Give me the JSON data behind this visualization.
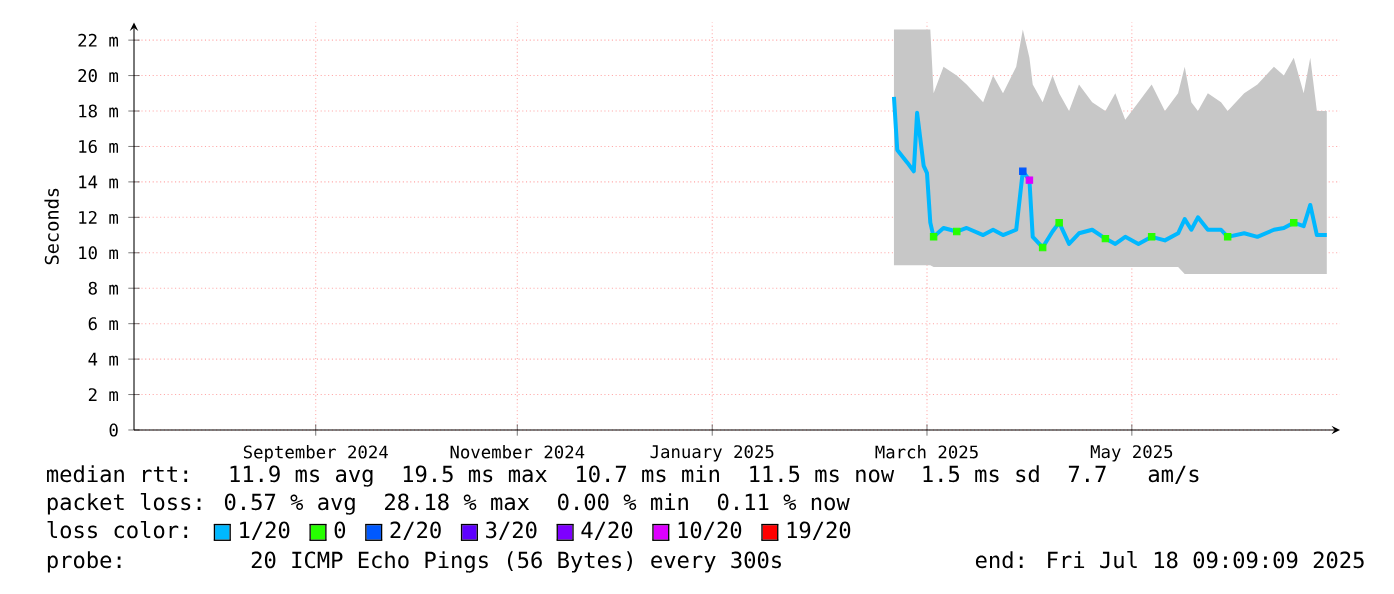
{
  "chart_data": {
    "type": "line",
    "ylabel": "Seconds",
    "legend_title": "loss color:",
    "legend": "bottom",
    "grid": true,
    "xlim": [
      "2024-07-18",
      "2025-07-18"
    ],
    "xticks": [
      {
        "value": "2024-09-11",
        "label": "September 2024"
      },
      {
        "value": "2024-11-11",
        "label": "November 2024"
      },
      {
        "value": "2025-01-09",
        "label": "January 2025"
      },
      {
        "value": "2025-03-15",
        "label": "March 2025"
      },
      {
        "value": "2025-05-16",
        "label": "May 2025"
      }
    ],
    "ylim": [
      0,
      23
    ],
    "yticks": [
      0,
      {
        "value": 2,
        "label": "2 m"
      },
      {
        "value": 4,
        "label": "4 m"
      },
      {
        "value": 6,
        "label": "6 m"
      },
      {
        "value": 8,
        "label": "8 m"
      },
      {
        "value": 10,
        "label": "10 m"
      },
      {
        "value": 12,
        "label": "12 m"
      },
      {
        "value": 14,
        "label": "14 m"
      },
      {
        "value": 16,
        "label": "16 m"
      },
      {
        "value": 18,
        "label": "18 m"
      },
      {
        "value": 20,
        "label": "20 m"
      },
      {
        "value": 22,
        "label": "22 m"
      }
    ],
    "series": [
      {
        "name": "1/20",
        "type": "line",
        "color": "#00b8ff",
        "x": [
          "2025-03-05",
          "2025-03-06",
          "2025-03-09",
          "2025-03-11",
          "2025-03-12",
          "2025-03-14",
          "2025-03-15",
          "2025-03-16",
          "2025-03-17",
          "2025-03-20",
          "2025-03-24",
          "2025-03-27",
          "2025-04-01",
          "2025-04-04",
          "2025-04-07",
          "2025-04-11",
          "2025-04-13",
          "2025-04-15",
          "2025-04-16",
          "2025-04-19",
          "2025-04-22",
          "2025-04-24",
          "2025-04-27",
          "2025-04-30",
          "2025-05-04",
          "2025-05-08",
          "2025-05-11",
          "2025-05-14",
          "2025-05-18",
          "2025-05-22",
          "2025-05-26",
          "2025-05-30",
          "2025-06-01",
          "2025-06-03",
          "2025-06-05",
          "2025-06-08",
          "2025-06-12",
          "2025-06-14",
          "2025-06-19",
          "2025-06-23",
          "2025-06-28",
          "2025-07-01",
          "2025-07-04",
          "2025-07-07",
          "2025-07-09",
          "2025-07-11",
          "2025-07-14"
        ],
        "values": [
          18.8,
          15.8,
          15.1,
          14.6,
          17.9,
          14.9,
          14.5,
          11.7,
          10.9,
          11.4,
          11.2,
          11.4,
          11.0,
          11.3,
          11.0,
          11.3,
          14.6,
          14.1,
          10.9,
          10.3,
          11.2,
          11.7,
          10.5,
          11.1,
          11.3,
          10.8,
          10.5,
          10.9,
          10.5,
          10.9,
          10.7,
          11.1,
          11.9,
          11.3,
          12.0,
          11.3,
          11.3,
          10.9,
          11.1,
          10.9,
          11.3,
          11.4,
          11.7,
          11.5,
          12.7,
          11.0,
          11.0
        ],
        "lower": [
          9.3,
          9.3,
          9.3,
          9.3,
          9.3,
          9.3,
          9.3,
          9.3,
          9.2,
          9.2,
          9.2,
          9.2,
          9.2,
          9.2,
          9.2,
          9.2,
          9.2,
          9.2,
          9.2,
          9.2,
          9.2,
          9.2,
          9.2,
          9.2,
          9.2,
          9.2,
          9.2,
          9.2,
          9.2,
          9.2,
          9.2,
          9.2,
          8.8,
          8.8,
          8.8,
          8.8,
          8.8,
          8.8,
          8.8,
          8.8,
          8.8,
          8.8,
          8.8,
          8.8,
          8.8,
          8.8,
          8.8
        ],
        "upper": [
          22.6,
          22.6,
          22.6,
          22.6,
          22.6,
          22.6,
          22.6,
          22.6,
          19.0,
          20.5,
          20.0,
          19.5,
          18.5,
          20.0,
          19.0,
          20.5,
          22.6,
          21.0,
          19.5,
          18.5,
          20.0,
          19.0,
          18.0,
          19.5,
          18.5,
          18.0,
          19.0,
          17.5,
          18.5,
          19.5,
          18.0,
          19.0,
          20.5,
          18.5,
          18.0,
          19.0,
          18.5,
          18.0,
          19.0,
          19.5,
          20.5,
          20.0,
          21.0,
          19.0,
          21.0,
          18.0,
          18.0
        ]
      },
      {
        "name": "0",
        "type": "scatter",
        "marker": "square",
        "color": "#26ff00",
        "x": [
          "2025-03-17",
          "2025-03-24",
          "2025-04-19",
          "2025-04-24",
          "2025-05-08",
          "2025-05-22",
          "2025-06-14",
          "2025-07-04"
        ],
        "values": [
          10.9,
          11.2,
          10.3,
          11.7,
          10.8,
          10.9,
          10.9,
          11.7
        ]
      },
      {
        "name": "2/20",
        "type": "scatter",
        "marker": "square",
        "color": "#0059ff",
        "x": [
          "2025-04-13"
        ],
        "values": [
          14.6
        ]
      },
      {
        "name": "3/20",
        "color": "#5e00ff"
      },
      {
        "name": "4/20",
        "color": "#7e00ff"
      },
      {
        "name": "10/20",
        "type": "scatter",
        "marker": "square",
        "color": "#dd00ff",
        "x": [
          "2025-04-15"
        ],
        "values": [
          14.1
        ]
      },
      {
        "name": "19/20",
        "color": "#ff0000"
      }
    ],
    "annotations": [
      "median rtt:  11.9 ms avg  19.5 ms max  10.7 ms min  11.5 ms now  1.5 ms sd  7.7   am/s",
      "packet loss: 0.57 % avg  28.18 % max  0.00 % min  0.11 % now",
      "probe:       20 ICMP Echo Pings (56 Bytes) every 300s",
      "end: Fri Jul 18 09:09:09 2025"
    ]
  }
}
